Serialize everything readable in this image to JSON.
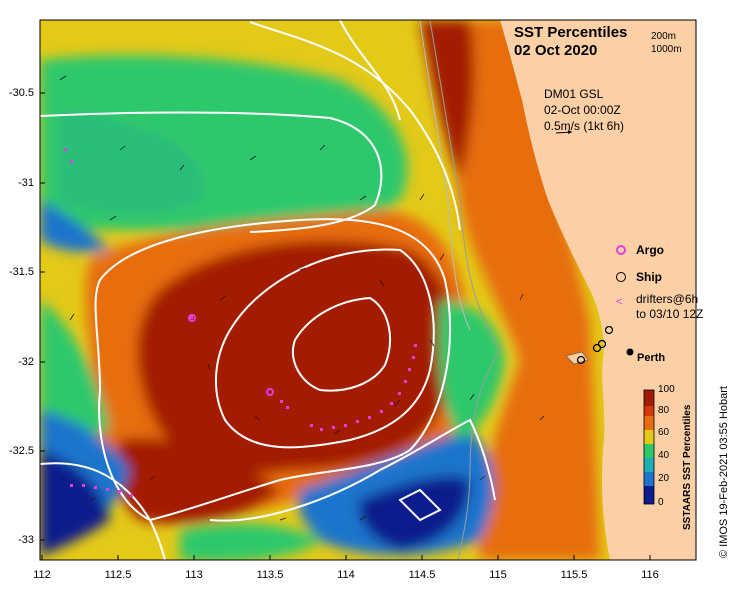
{
  "map": {
    "title_line1": "SST Percentiles",
    "title_line2": "02 Oct 2020",
    "depth_contours": [
      "200m",
      "1000m"
    ],
    "velocity_source": "DM01 GSL",
    "velocity_time": "02-Oct 00:00Z",
    "velocity_scale": "0.5m/s (1kt 6h)",
    "y_ticks": [
      "-30.5",
      "-31",
      "-31.5",
      "-32",
      "-32.5",
      "-33"
    ],
    "x_ticks": [
      "112",
      "112.5",
      "113",
      "113.5",
      "114",
      "114.5",
      "115",
      "115.5",
      "116"
    ],
    "legend": {
      "argo": "Argo",
      "ship": "Ship",
      "drifters_line1": "drifters@6h",
      "drifters_line2": "to 03/10 12Z"
    },
    "city": "Perth",
    "colorbar": {
      "label": "SSTAARS SST Percentiles",
      "ticks": [
        "100",
        "80",
        "60",
        "40",
        "20",
        "0"
      ]
    },
    "credit": "© IMOS 19-Feb-2021 03:55 Hobart"
  },
  "colors": {
    "land": "#fbd0a6",
    "high": "#a31a05",
    "warm": "#e76d11",
    "mid": "#e3c918",
    "cool": "#2ec86c",
    "cold": "#1d74cc",
    "deep": "#0b1d8c",
    "drifter": "#e040e0"
  }
}
